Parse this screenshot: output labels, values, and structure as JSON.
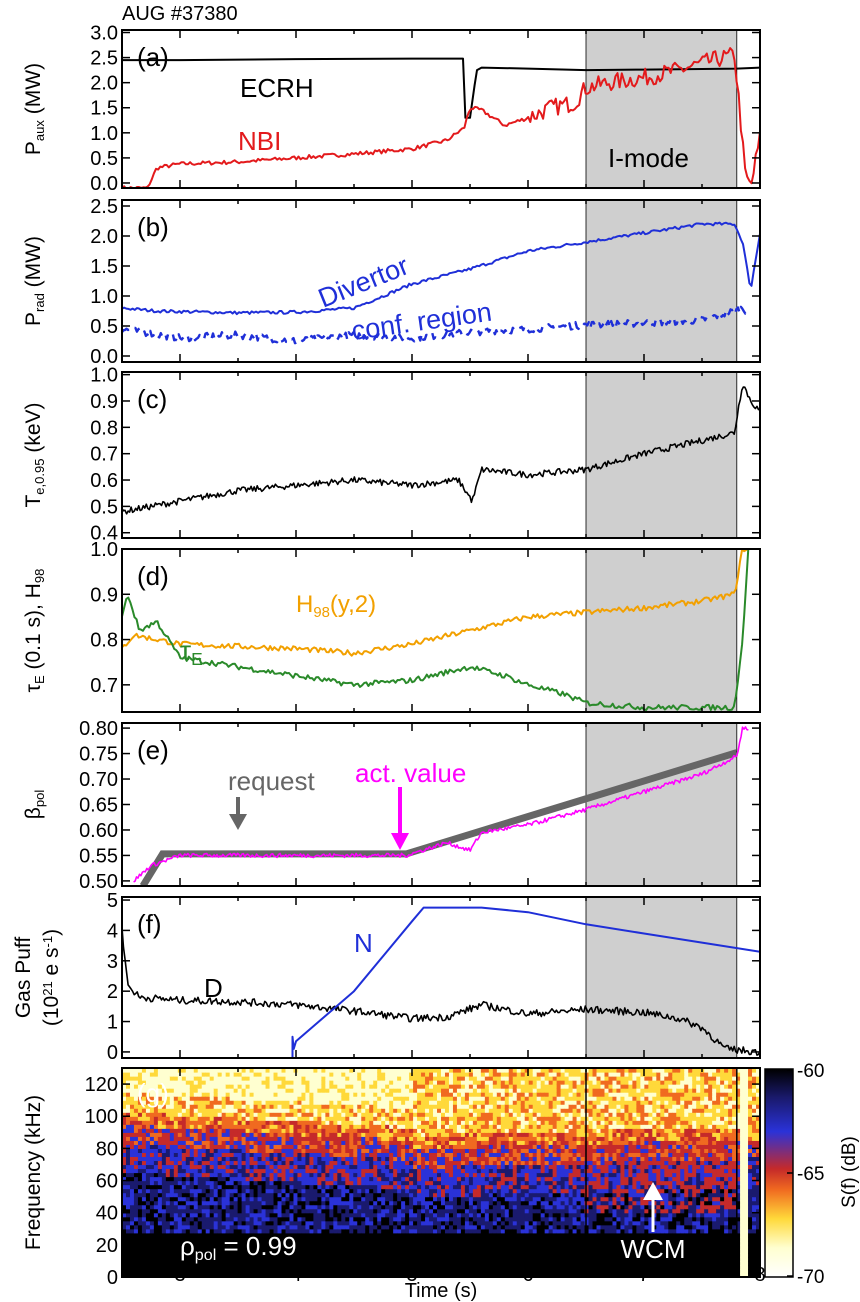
{
  "figure": {
    "title": "AUG #37380",
    "xlabel": "Time (s)",
    "xticks": [
      "3",
      "4",
      "5",
      "6",
      "7",
      "8"
    ],
    "xlim": [
      2.5,
      8.0
    ],
    "imode_shade": {
      "start": 6.5,
      "end": 7.8,
      "label": "I-mode",
      "color": "#cfcfcf"
    }
  },
  "colorbar": {
    "label": "S(f) (dB)",
    "ticks": [
      "-60",
      "-65",
      "-70"
    ],
    "range": [
      -60,
      -70
    ],
    "colors": [
      "#000000",
      "#1a1a6e",
      "#2a32d8",
      "#c52a2a",
      "#f06a20",
      "#ffd93a",
      "#ffffd0",
      "#ffffff"
    ]
  },
  "chart_data": [
    {
      "type": "line",
      "panel": "(a)",
      "ylabel": "P",
      "ylabel_sub": "aux",
      "ylabel_unit": " (MW)",
      "yticks": [
        "0.0",
        "0.5",
        "1.0",
        "1.5",
        "2.0",
        "2.5",
        "3.0"
      ],
      "ylim": [
        -0.1,
        3.05
      ],
      "annotations": [
        {
          "text": "ECRH",
          "color": "#000000"
        },
        {
          "text": "NBI",
          "color": "#e31a1c"
        }
      ],
      "series": [
        {
          "name": "ECRH",
          "color": "#000000",
          "x": [
            2.5,
            3.0,
            4.0,
            5.0,
            5.4,
            5.44,
            5.46,
            5.5,
            5.54,
            5.56,
            5.6,
            6.0,
            6.5,
            7.0,
            7.8,
            8.0
          ],
          "y": [
            2.45,
            2.45,
            2.47,
            2.48,
            2.48,
            2.48,
            1.3,
            1.3,
            1.95,
            2.25,
            2.3,
            2.28,
            2.25,
            2.26,
            2.28,
            2.3
          ]
        },
        {
          "name": "NBI",
          "color": "#e31a1c",
          "x": [
            2.5,
            2.72,
            2.8,
            3.0,
            3.5,
            4.0,
            4.5,
            5.0,
            5.3,
            5.45,
            5.5,
            5.6,
            5.8,
            6.0,
            6.2,
            6.4,
            6.5,
            6.7,
            7.0,
            7.3,
            7.6,
            7.78,
            7.82,
            7.87,
            7.92,
            8.0
          ],
          "y": [
            -0.1,
            -0.1,
            0.3,
            0.38,
            0.42,
            0.5,
            0.58,
            0.68,
            0.85,
            1.1,
            1.5,
            1.45,
            1.15,
            1.3,
            1.5,
            1.6,
            1.9,
            2.0,
            2.1,
            2.25,
            2.45,
            2.55,
            1.6,
            0.2,
            -0.1,
            0.9
          ]
        }
      ]
    },
    {
      "type": "line",
      "panel": "(b)",
      "ylabel": "P",
      "ylabel_sub": "rad",
      "ylabel_unit": " (MW)",
      "yticks": [
        "0.0",
        "0.5",
        "1.0",
        "1.5",
        "2.0",
        "2.5"
      ],
      "ylim": [
        -0.1,
        2.6
      ],
      "annotations": [
        {
          "text": "Divertor",
          "color": "#1f2fd8"
        },
        {
          "text": "conf. region",
          "color": "#1f2fd8"
        }
      ],
      "series": [
        {
          "name": "Divertor",
          "color": "#1f2fd8",
          "dash": false,
          "x": [
            2.5,
            2.8,
            3.5,
            4.0,
            4.5,
            5.0,
            5.5,
            6.0,
            6.5,
            7.0,
            7.5,
            7.78,
            7.85,
            7.92,
            8.0
          ],
          "y": [
            0.8,
            0.75,
            0.72,
            0.73,
            0.8,
            1.2,
            1.45,
            1.75,
            1.9,
            2.05,
            2.2,
            2.2,
            1.9,
            1.1,
            2.05
          ]
        },
        {
          "name": "conf. region",
          "color": "#1f2fd8",
          "dash": true,
          "x": [
            2.5,
            3.0,
            3.5,
            4.0,
            4.5,
            5.0,
            5.5,
            6.0,
            6.5,
            7.0,
            7.5,
            7.78,
            7.85,
            7.9
          ],
          "y": [
            0.45,
            0.3,
            0.35,
            0.25,
            0.35,
            0.3,
            0.4,
            0.45,
            0.52,
            0.55,
            0.6,
            0.75,
            0.8,
            0.72
          ]
        }
      ]
    },
    {
      "type": "line",
      "panel": "(c)",
      "ylabel": "T",
      "ylabel_sub": "e,0.95",
      "ylabel_unit": " (keV)",
      "yticks": [
        "0.4",
        "0.5",
        "0.6",
        "0.7",
        "0.8",
        "0.9",
        "1.0"
      ],
      "ylim": [
        0.38,
        1.01
      ],
      "annotations": [],
      "series": [
        {
          "name": "",
          "color": "#000000",
          "noise": 0.012,
          "x": [
            2.5,
            3.0,
            3.5,
            4.0,
            4.5,
            5.0,
            5.4,
            5.52,
            5.6,
            6.0,
            6.5,
            7.0,
            7.5,
            7.78,
            7.85,
            7.92,
            8.0
          ],
          "y": [
            0.48,
            0.52,
            0.56,
            0.58,
            0.6,
            0.58,
            0.6,
            0.52,
            0.64,
            0.62,
            0.64,
            0.7,
            0.75,
            0.78,
            0.97,
            0.9,
            0.86
          ]
        }
      ]
    },
    {
      "type": "line",
      "panel": "(d)",
      "ylabel": "τ",
      "ylabel_sub": "E",
      "ylabel_unit": " (0.1 s), H",
      "ylabel_sub2": "98",
      "yticks": [
        "0.7",
        "0.8",
        "0.9",
        "1.0"
      ],
      "ylim": [
        0.64,
        1.0
      ],
      "annotations": [
        {
          "text": "H",
          "sub": "98",
          "rest": "(y,2)",
          "color": "#f2a000"
        },
        {
          "text": "τ",
          "sub": "E",
          "color": "#2a8a2a"
        }
      ],
      "series": [
        {
          "name": "H98(y,2)",
          "color": "#f2a000",
          "x": [
            2.5,
            2.6,
            3.0,
            3.5,
            4.0,
            4.5,
            5.0,
            5.5,
            6.0,
            6.5,
            7.0,
            7.5,
            7.78,
            7.85,
            7.9
          ],
          "y": [
            0.78,
            0.81,
            0.79,
            0.785,
            0.78,
            0.77,
            0.79,
            0.82,
            0.85,
            0.86,
            0.87,
            0.885,
            0.9,
            1.0,
            1.0
          ]
        },
        {
          "name": "tauE",
          "color": "#2a8a2a",
          "x": [
            2.5,
            2.55,
            2.65,
            2.8,
            3.0,
            3.5,
            4.0,
            4.5,
            5.0,
            5.5,
            5.8,
            6.0,
            6.3,
            6.5,
            7.0,
            7.5,
            7.78,
            7.85,
            7.9
          ],
          "y": [
            0.85,
            0.9,
            0.82,
            0.84,
            0.76,
            0.74,
            0.72,
            0.7,
            0.71,
            0.74,
            0.72,
            0.7,
            0.68,
            0.66,
            0.65,
            0.65,
            0.65,
            0.8,
            1.0
          ]
        }
      ]
    },
    {
      "type": "line",
      "panel": "(e)",
      "ylabel": "β",
      "ylabel_sub": "pol",
      "ylabel_unit": "",
      "yticks": [
        "0.50",
        "0.55",
        "0.60",
        "0.65",
        "0.70",
        "0.75",
        "0.80"
      ],
      "ylim": [
        0.49,
        0.81
      ],
      "annotations": [
        {
          "text": "request",
          "color": "#666666"
        },
        {
          "text": "act. value",
          "color": "#ff00ff"
        }
      ],
      "series": [
        {
          "name": "request",
          "color": "#666666",
          "x": [
            2.68,
            2.85,
            4.95,
            7.8
          ],
          "y": [
            0.49,
            0.553,
            0.553,
            0.752
          ]
        },
        {
          "name": "act. value",
          "color": "#ff00ff",
          "noise": 0.004,
          "x": [
            2.6,
            2.75,
            3.0,
            4.0,
            4.95,
            5.3,
            5.5,
            5.6,
            6.0,
            6.5,
            7.0,
            7.5,
            7.8,
            7.85,
            7.9
          ],
          "y": [
            0.5,
            0.53,
            0.55,
            0.55,
            0.55,
            0.575,
            0.56,
            0.595,
            0.61,
            0.64,
            0.675,
            0.71,
            0.745,
            0.8,
            0.8
          ]
        }
      ]
    },
    {
      "type": "line",
      "panel": "(f)",
      "ylabel": "Gas Puff",
      "ylabel2": "(10",
      "ylabel2_sup": "21",
      "ylabel2_rest": " e s",
      "ylabel2_sup2": "-1",
      "ylabel2_end": ")",
      "yticks": [
        "0",
        "1",
        "2",
        "3",
        "4",
        "5"
      ],
      "ylim": [
        -0.2,
        5.1
      ],
      "annotations": [
        {
          "text": "D",
          "color": "#000000"
        },
        {
          "text": "N",
          "color": "#1f2fd8"
        }
      ],
      "series": [
        {
          "name": "D",
          "color": "#000000",
          "noise": 0.12,
          "x": [
            2.5,
            2.55,
            2.65,
            3.0,
            3.5,
            4.0,
            4.5,
            5.0,
            5.3,
            5.6,
            6.0,
            6.5,
            7.0,
            7.3,
            7.5,
            7.7,
            7.85,
            8.0
          ],
          "y": [
            4.0,
            2.2,
            1.8,
            1.7,
            1.65,
            1.55,
            1.35,
            1.1,
            1.15,
            1.55,
            1.25,
            1.4,
            1.3,
            1.1,
            0.8,
            0.1,
            0.05,
            0.0
          ]
        },
        {
          "name": "N",
          "color": "#1f2fd8",
          "x": [
            2.5,
            3.97,
            3.97,
            3.98,
            4.0,
            4.5,
            5.0,
            5.1,
            5.3,
            5.6,
            6.0,
            6.5,
            7.0,
            7.5,
            8.0
          ],
          "y": [
            -0.2,
            -0.2,
            0.5,
            0.1,
            0.35,
            2.0,
            4.3,
            4.75,
            4.75,
            4.75,
            4.6,
            4.2,
            3.9,
            3.6,
            3.3
          ]
        }
      ]
    },
    {
      "type": "heatmap",
      "panel": "(g)",
      "ylabel": "Frequency (kHz)",
      "yticks": [
        "0",
        "20",
        "40",
        "60",
        "80",
        "100",
        "120"
      ],
      "ylim": [
        0,
        130
      ],
      "annotations": [
        {
          "text": "ρ",
          "sub": "pol",
          "rest": " = 0.99",
          "color": "#ffffff"
        },
        {
          "text": "WCM",
          "color": "#ffffff"
        }
      ]
    }
  ]
}
